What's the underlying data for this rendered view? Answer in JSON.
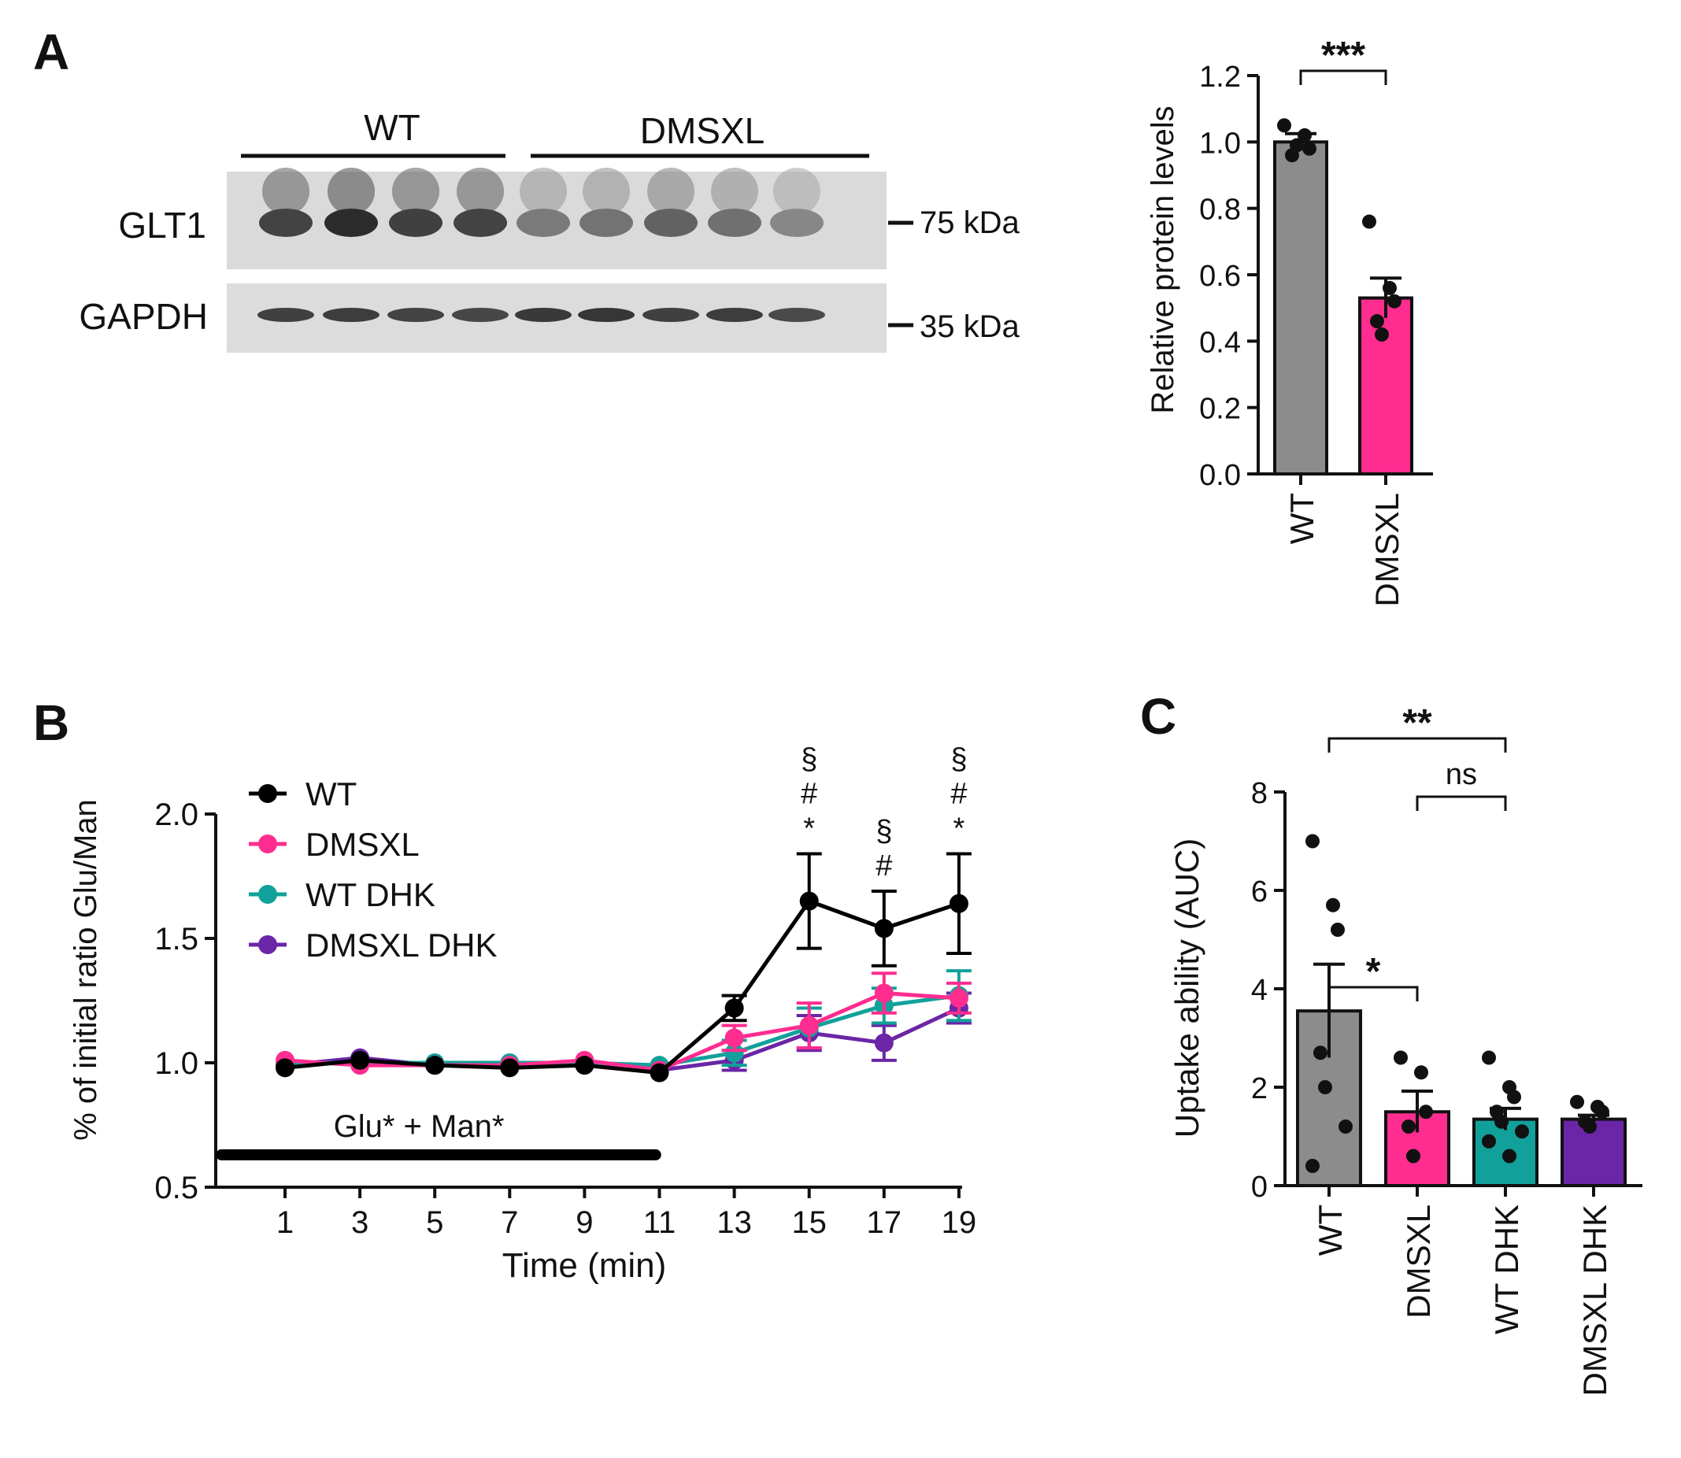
{
  "panels": {
    "A": "A",
    "B": "B",
    "C": "C"
  },
  "blot": {
    "groups": [
      "WT",
      "DMSXL"
    ],
    "rows": [
      {
        "label": "GLT1",
        "marker": "75 kDa",
        "intensity": [
          0.78,
          0.92,
          0.8,
          0.78,
          0.46,
          0.5,
          0.6,
          0.52,
          0.38
        ]
      },
      {
        "label": "GAPDH",
        "marker": "35 kDa",
        "intensity": [
          0.8,
          0.82,
          0.78,
          0.76,
          0.84,
          0.86,
          0.8,
          0.82,
          0.74
        ]
      }
    ]
  },
  "colors": {
    "WT": "#8c8c8c",
    "WT_line": "#000000",
    "DMSXL": "#ff2d8f",
    "WT DHK": "#12a09a",
    "DMSXL DHK": "#6a26a6"
  },
  "chart_data": [
    {
      "id": "A-right",
      "type": "bar",
      "ylabel": "Relative protein levels",
      "ylim": [
        0,
        1.2
      ],
      "yticks": [
        "0.0",
        "0.2",
        "0.4",
        "0.6",
        "0.8",
        "1.0",
        "1.2"
      ],
      "categories": [
        "WT",
        "DMSXL"
      ],
      "values": [
        1.0,
        0.53
      ],
      "sem": [
        0.025,
        0.06
      ],
      "points": [
        [
          1.05,
          1.02,
          0.98,
          0.96,
          0.99
        ],
        [
          0.76,
          0.56,
          0.52,
          0.46,
          0.42
        ]
      ],
      "annotations": [
        {
          "from": "WT",
          "to": "DMSXL",
          "label": "***"
        }
      ]
    },
    {
      "id": "B",
      "type": "line",
      "xlabel": "Time (min)",
      "ylabel": "% of initial ratio Glu/Man",
      "ylim": [
        0.5,
        2.0
      ],
      "yticks": [
        "0.5",
        "1.0",
        "1.5",
        "2.0"
      ],
      "x": [
        1,
        3,
        5,
        7,
        9,
        11,
        13,
        15,
        17,
        19
      ],
      "xticks": [
        "1",
        "3",
        "5",
        "7",
        "9",
        "11",
        "13",
        "15",
        "17",
        "19"
      ],
      "series": [
        {
          "name": "WT",
          "values": [
            0.98,
            1.01,
            0.99,
            0.98,
            0.99,
            0.96,
            1.22,
            1.65,
            1.54,
            1.64
          ],
          "err": [
            0.01,
            0.01,
            0.01,
            0.01,
            0.01,
            0.01,
            0.05,
            0.19,
            0.15,
            0.2
          ]
        },
        {
          "name": "DMSXL",
          "values": [
            1.01,
            0.99,
            0.99,
            0.99,
            1.01,
            0.97,
            1.1,
            1.15,
            1.28,
            1.26
          ],
          "err": [
            0.01,
            0.01,
            0.01,
            0.01,
            0.01,
            0.01,
            0.05,
            0.09,
            0.08,
            0.06
          ]
        },
        {
          "name": "WT DHK",
          "values": [
            1.0,
            1.0,
            1.0,
            1.0,
            1.0,
            0.99,
            1.04,
            1.14,
            1.23,
            1.27
          ],
          "err": [
            0.01,
            0.01,
            0.01,
            0.01,
            0.01,
            0.01,
            0.05,
            0.08,
            0.07,
            0.1
          ]
        },
        {
          "name": "DMSXL DHK",
          "values": [
            0.99,
            1.02,
            0.99,
            0.99,
            1.0,
            0.97,
            1.01,
            1.12,
            1.08,
            1.22
          ],
          "err": [
            0.01,
            0.01,
            0.01,
            0.01,
            0.01,
            0.01,
            0.04,
            0.07,
            0.07,
            0.06
          ]
        }
      ],
      "treatment_bar": {
        "label": "Glu* + Man*",
        "from": -0.7,
        "to": 10.9,
        "y": 0.63
      },
      "significance": [
        {
          "x": 15,
          "marks": [
            "§",
            "#",
            "*"
          ]
        },
        {
          "x": 17,
          "marks": [
            "§",
            "#"
          ]
        },
        {
          "x": 19,
          "marks": [
            "§",
            "#",
            "*"
          ]
        }
      ]
    },
    {
      "id": "C",
      "type": "bar",
      "ylabel": "Uptake ability (AUC)",
      "ylim": [
        0,
        8
      ],
      "yticks": [
        "0",
        "2",
        "4",
        "6",
        "8"
      ],
      "categories": [
        "WT",
        "DMSXL",
        "WT DHK",
        "DMSXL DHK"
      ],
      "values": [
        3.55,
        1.5,
        1.35,
        1.35
      ],
      "sem": [
        0.95,
        0.42,
        0.22,
        0.08
      ],
      "points": [
        [
          7.0,
          5.7,
          5.2,
          2.7,
          2.0,
          1.2,
          0.4
        ],
        [
          2.6,
          2.3,
          1.5,
          1.2,
          0.6
        ],
        [
          2.6,
          2.0,
          1.8,
          1.5,
          1.3,
          1.1,
          0.9,
          0.6
        ],
        [
          1.7,
          1.6,
          1.5,
          1.3,
          1.2
        ]
      ],
      "annotations": [
        {
          "from": "WT",
          "to": "DMSXL",
          "label": "*"
        },
        {
          "from": "WT",
          "to": "WT DHK",
          "label": "**"
        },
        {
          "from": "DMSXL",
          "to": "WT DHK",
          "label": "ns"
        }
      ]
    }
  ]
}
